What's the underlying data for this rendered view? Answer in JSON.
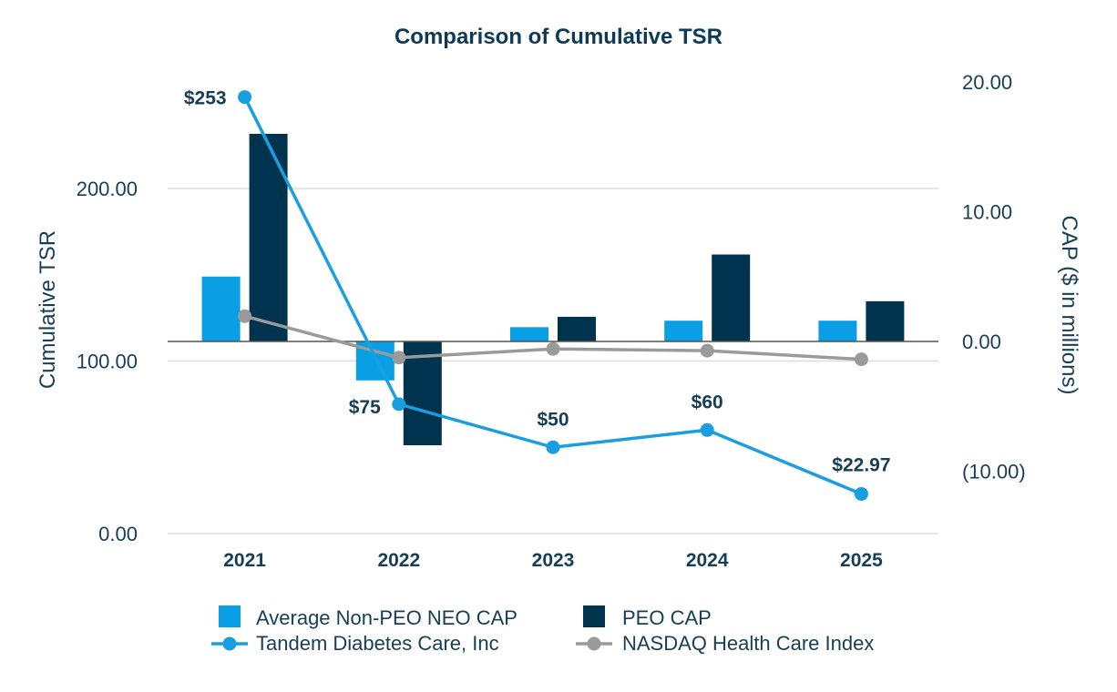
{
  "chart_data": {
    "type": "bar",
    "title": "Comparison of Cumulative TSR",
    "categories": [
      "2021",
      "2022",
      "2023",
      "2024",
      "2025"
    ],
    "y_left": {
      "label": "Cumulative TSR",
      "ticks": [
        0,
        100,
        200
      ],
      "tick_labels": [
        "0.00",
        "100.00",
        "200.00"
      ],
      "ylim": [
        0,
        271
      ]
    },
    "y_right": {
      "label": "CAP ($ in millions)",
      "ticks": [
        -10,
        0,
        10,
        20
      ],
      "tick_labels": [
        "(10.00)",
        "0.00",
        "10.00",
        "20.00"
      ],
      "ylim": [
        -14.8,
        20.2
      ]
    },
    "grid": true,
    "legend_position": "bottom",
    "bar_series": [
      {
        "name": "Average Non-PEO NEO CAP",
        "axis": "right",
        "color": "#0a9ee5",
        "values": [
          5.0,
          -3.0,
          1.1,
          1.6,
          1.6
        ]
      },
      {
        "name": "PEO CAP",
        "axis": "right",
        "color": "#00334e",
        "values": [
          16.0,
          -8.0,
          1.9,
          6.7,
          3.1
        ]
      }
    ],
    "line_series": [
      {
        "name": "Tandem Diabetes Care, Inc",
        "axis": "left",
        "color": "#1a9ee2",
        "values": [
          253,
          75,
          50,
          60,
          22.97
        ],
        "labels": [
          "$253",
          "$75",
          "$50",
          "$60",
          "$22.97"
        ]
      },
      {
        "name": "NASDAQ Health Care Index",
        "axis": "left",
        "color": "#9a9a9a",
        "values": [
          126,
          102,
          107,
          106,
          101
        ],
        "labels": []
      }
    ]
  }
}
